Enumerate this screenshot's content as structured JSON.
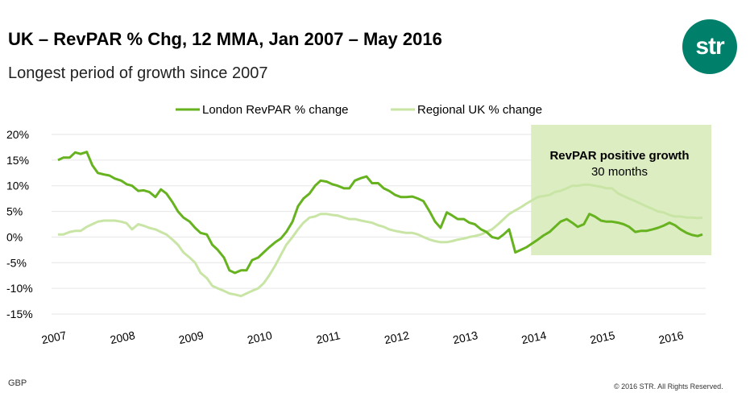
{
  "header": {
    "title": "UK – RevPAR % Chg, 12 MMA, Jan 2007 – May 2016",
    "subtitle": "Longest period of growth since 2007"
  },
  "logo": {
    "text": "str"
  },
  "footer": {
    "currency": "GBP",
    "copyright": "© 2016 STR. All Rights Reserved."
  },
  "colors": {
    "london": "#66b21f",
    "regional": "#c9e5a6",
    "highlight": "#dcedc2"
  },
  "chart_data": {
    "type": "line",
    "title": "",
    "xlabel": "",
    "ylabel": "",
    "ylim": [
      -15,
      20
    ],
    "xlim": [
      2007.0,
      2016.4
    ],
    "y_ticks": [
      20,
      15,
      10,
      5,
      0,
      -5,
      -10,
      -15
    ],
    "y_tick_labels": [
      "20%",
      "15%",
      "10%",
      "5%",
      "0%",
      "-5%",
      "-10%",
      "-15%"
    ],
    "x_ticks": [
      2007,
      2008,
      2009,
      2010,
      2011,
      2012,
      2013,
      2014,
      2015,
      2016
    ],
    "x_tick_labels": [
      "2007",
      "2008",
      "2009",
      "2010",
      "2011",
      "2012",
      "2013",
      "2014",
      "2015",
      "2016"
    ],
    "grid": true,
    "legend_position": "top",
    "highlight": {
      "x_start": 2013.9,
      "x_end": 2016.4,
      "label": "RevPAR positive growth",
      "sublabel": "30 months"
    },
    "series": [
      {
        "name": "London RevPAR % change",
        "x": [
          2007.0,
          2007.08,
          2007.17,
          2007.25,
          2007.33,
          2007.42,
          2007.5,
          2007.58,
          2007.67,
          2007.75,
          2007.83,
          2007.92,
          2008.0,
          2008.08,
          2008.17,
          2008.25,
          2008.33,
          2008.42,
          2008.5,
          2008.58,
          2008.67,
          2008.75,
          2008.83,
          2008.92,
          2009.0,
          2009.08,
          2009.17,
          2009.25,
          2009.33,
          2009.42,
          2009.5,
          2009.58,
          2009.67,
          2009.75,
          2009.83,
          2009.92,
          2010.0,
          2010.08,
          2010.17,
          2010.25,
          2010.33,
          2010.42,
          2010.5,
          2010.58,
          2010.67,
          2010.75,
          2010.83,
          2010.92,
          2011.0,
          2011.08,
          2011.17,
          2011.25,
          2011.33,
          2011.42,
          2011.5,
          2011.58,
          2011.67,
          2011.75,
          2011.83,
          2011.92,
          2012.0,
          2012.08,
          2012.17,
          2012.25,
          2012.33,
          2012.42,
          2012.5,
          2012.58,
          2012.67,
          2012.75,
          2012.83,
          2012.92,
          2013.0,
          2013.08,
          2013.17,
          2013.25,
          2013.33,
          2013.42,
          2013.5,
          2013.58,
          2013.67,
          2013.75,
          2013.83,
          2013.92,
          2014.0,
          2014.08,
          2014.17,
          2014.25,
          2014.33,
          2014.42,
          2014.5,
          2014.58,
          2014.67,
          2014.75,
          2014.83,
          2014.92,
          2015.0,
          2015.08,
          2015.17,
          2015.25,
          2015.33,
          2015.42,
          2015.5,
          2015.58,
          2015.67,
          2015.75,
          2015.83,
          2015.92,
          2016.0,
          2016.08,
          2016.17,
          2016.25,
          2016.33,
          2016.4
        ],
        "values": [
          15,
          15.5,
          15.5,
          16.5,
          16.2,
          16.6,
          14,
          12.5,
          12.2,
          12,
          11.4,
          11,
          10.3,
          10,
          9,
          9.1,
          8.8,
          7.8,
          9.3,
          8.5,
          6.8,
          5,
          3.8,
          3,
          1.8,
          0.8,
          0.5,
          -1.5,
          -2.5,
          -4,
          -6.5,
          -7,
          -6.5,
          -6.5,
          -4.5,
          -4,
          -3,
          -2,
          -1,
          -0.3,
          1,
          3,
          6,
          7.5,
          8.5,
          10,
          11,
          10.8,
          10.3,
          10,
          9.5,
          9.5,
          11,
          11.5,
          11.8,
          10.5,
          10.5,
          9.5,
          9,
          8.2,
          7.8,
          7.8,
          7.9,
          7.5,
          7,
          5,
          3,
          1.8,
          4.8,
          4.2,
          3.5,
          3.5,
          2.8,
          2.5,
          1.5,
          1,
          0,
          -0.3,
          0.5,
          1.5,
          -3,
          -2.5,
          -2,
          -1.2,
          -0.5,
          0.3,
          1,
          2,
          3,
          3.5,
          2.8,
          2,
          2.5,
          4.5,
          4,
          3.2,
          3,
          3,
          2.8,
          2.5,
          2,
          1,
          1.2,
          1.2,
          1.5,
          1.8,
          2.2,
          2.8,
          2.3,
          1.5,
          0.8,
          0.4,
          0.2,
          0.5
        ]
      },
      {
        "name": "Regional UK % change",
        "x": [
          2007.0,
          2007.08,
          2007.17,
          2007.25,
          2007.33,
          2007.42,
          2007.5,
          2007.58,
          2007.67,
          2007.75,
          2007.83,
          2007.92,
          2008.0,
          2008.08,
          2008.17,
          2008.25,
          2008.33,
          2008.42,
          2008.5,
          2008.58,
          2008.67,
          2008.75,
          2008.83,
          2008.92,
          2009.0,
          2009.08,
          2009.17,
          2009.25,
          2009.33,
          2009.42,
          2009.5,
          2009.58,
          2009.67,
          2009.75,
          2009.83,
          2009.92,
          2010.0,
          2010.08,
          2010.17,
          2010.25,
          2010.33,
          2010.42,
          2010.5,
          2010.58,
          2010.67,
          2010.75,
          2010.83,
          2010.92,
          2011.0,
          2011.08,
          2011.17,
          2011.25,
          2011.33,
          2011.42,
          2011.5,
          2011.58,
          2011.67,
          2011.75,
          2011.83,
          2011.92,
          2012.0,
          2012.08,
          2012.17,
          2012.25,
          2012.33,
          2012.42,
          2012.5,
          2012.58,
          2012.67,
          2012.75,
          2012.83,
          2012.92,
          2013.0,
          2013.08,
          2013.17,
          2013.25,
          2013.33,
          2013.42,
          2013.5,
          2013.58,
          2013.67,
          2013.75,
          2013.83,
          2013.92,
          2014.0,
          2014.08,
          2014.17,
          2014.25,
          2014.33,
          2014.42,
          2014.5,
          2014.58,
          2014.67,
          2014.75,
          2014.83,
          2014.92,
          2015.0,
          2015.08,
          2015.17,
          2015.25,
          2015.33,
          2015.42,
          2015.5,
          2015.58,
          2015.67,
          2015.75,
          2015.83,
          2015.92,
          2016.0,
          2016.08,
          2016.17,
          2016.25,
          2016.33,
          2016.4
        ],
        "values": [
          0.5,
          0.5,
          1,
          1.2,
          1.2,
          2,
          2.5,
          3,
          3.2,
          3.2,
          3.2,
          3,
          2.7,
          1.5,
          2.5,
          2.2,
          1.8,
          1.5,
          1,
          0.5,
          -0.5,
          -1.5,
          -3,
          -4,
          -5,
          -7,
          -8,
          -9.5,
          -10,
          -10.5,
          -11,
          -11.2,
          -11.5,
          -11,
          -10.5,
          -10,
          -9,
          -7.5,
          -5.5,
          -3.5,
          -1.5,
          0,
          1.5,
          2.8,
          3.8,
          4,
          4.5,
          4.5,
          4.3,
          4.2,
          3.8,
          3.5,
          3.5,
          3.2,
          3,
          2.8,
          2.3,
          2,
          1.5,
          1.2,
          1,
          0.8,
          0.8,
          0.5,
          0,
          -0.5,
          -0.8,
          -1,
          -1,
          -0.8,
          -0.5,
          -0.3,
          0,
          0.2,
          0.5,
          1,
          1.5,
          2.5,
          3.5,
          4.5,
          5.2,
          5.8,
          6.5,
          7.2,
          7.8,
          8,
          8.2,
          8.8,
          9,
          9.5,
          10,
          10,
          10.2,
          10.2,
          10,
          9.8,
          9.5,
          9.5,
          8.5,
          8,
          7.5,
          7,
          6.5,
          6,
          5.5,
          5,
          4.8,
          4.3,
          4,
          4,
          3.8,
          3.8,
          3.7,
          3.8
        ]
      }
    ]
  }
}
